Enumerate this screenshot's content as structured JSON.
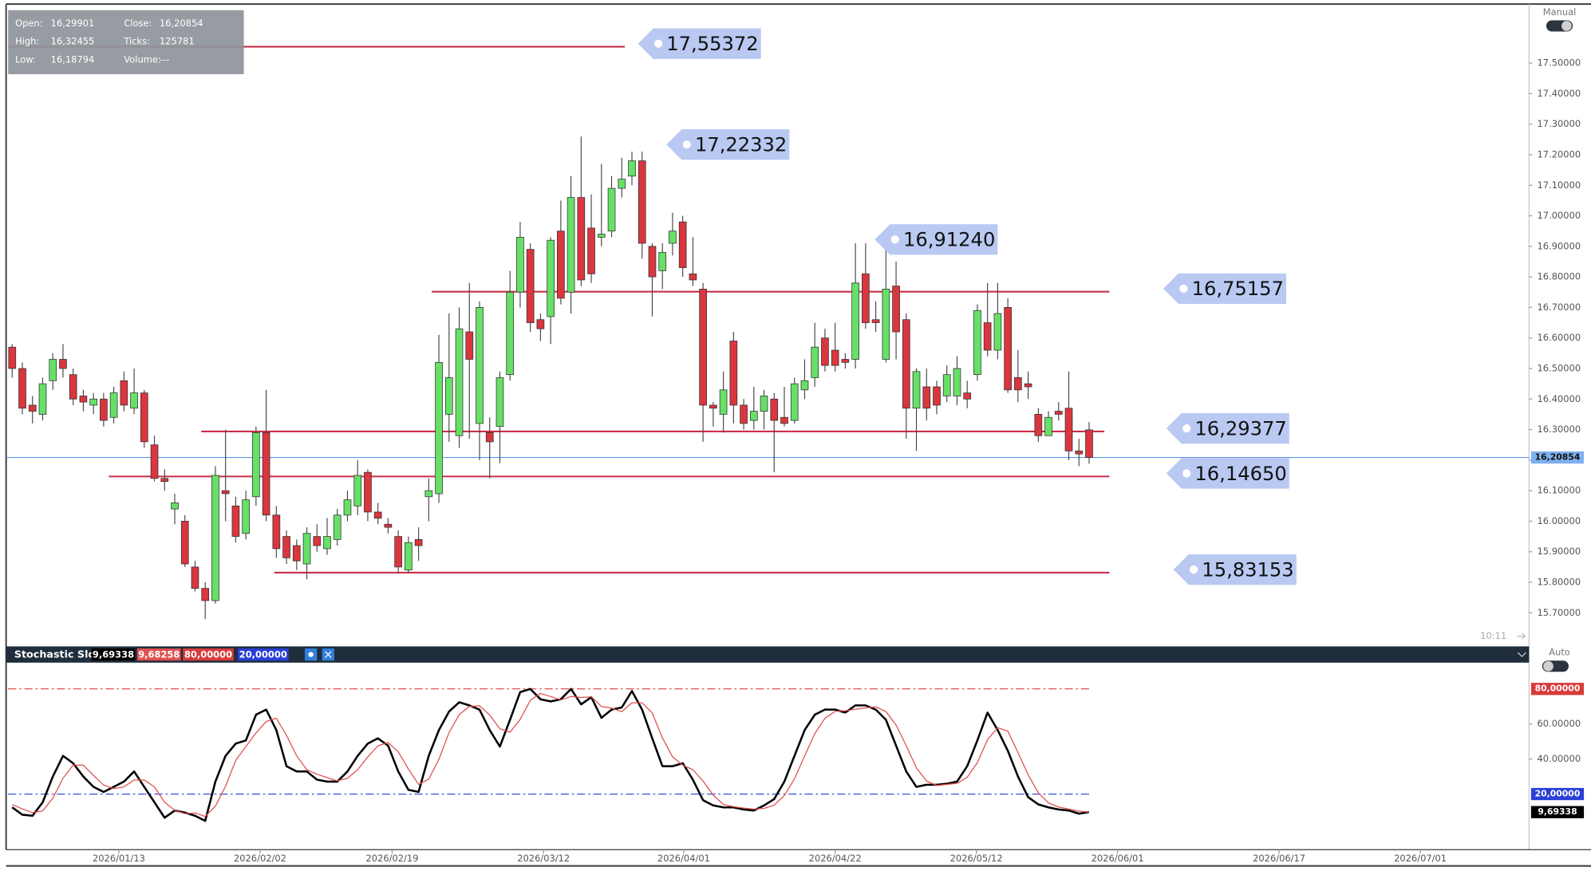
{
  "info": [
    {
      "label": "Open:",
      "value": "16,29901"
    },
    {
      "label": "High:",
      "value": "16,32455"
    },
    {
      "label": "Low:",
      "value": "16,18794"
    },
    {
      "label": "Close:",
      "value": "16,20854"
    },
    {
      "label": "Ticks:",
      "value": "125781"
    },
    {
      "label": "Volume:",
      "value": "---"
    }
  ],
  "controls": {
    "price_mode": "Manual",
    "indicator_mode": "Auto",
    "time": "10:11"
  },
  "chart_data": [
    {
      "type": "candlestick",
      "up_color": "#66e066",
      "down_color": "#d9363e",
      "level_color": "#c8304a",
      "last_price_color": "#4a86e8",
      "open": [
        16.57,
        16.5,
        16.38,
        16.35,
        16.46,
        16.53,
        16.48,
        16.41,
        16.38,
        16.4,
        16.34,
        16.46,
        16.37,
        16.42,
        16.25,
        16.14,
        16.04,
        16.0,
        15.85,
        15.78,
        15.74,
        16.1,
        16.05,
        15.96,
        16.08,
        16.29,
        16.02,
        15.95,
        15.92,
        15.86,
        15.95,
        15.91,
        15.94,
        16.02,
        16.05,
        16.16,
        16.03,
        15.99,
        15.95,
        15.84,
        15.94,
        16.08,
        16.09,
        16.35,
        16.28,
        16.62,
        16.32,
        16.29,
        16.31,
        16.48,
        16.75,
        16.89,
        16.66,
        16.67,
        16.95,
        16.75,
        17.06,
        16.96,
        16.93,
        16.95,
        17.09,
        17.13,
        17.18,
        16.9,
        16.82,
        16.91,
        16.98,
        16.81,
        16.76,
        16.38,
        16.35,
        16.59,
        16.38,
        16.33,
        16.36,
        16.4,
        16.34,
        16.33,
        16.43,
        16.47,
        16.6,
        16.56,
        16.53,
        16.53,
        16.81,
        16.66,
        16.53,
        16.77,
        16.66,
        16.37,
        16.44,
        16.44,
        16.41,
        16.41,
        16.42,
        16.48,
        16.65,
        16.56,
        16.7,
        16.47,
        16.45,
        16.35,
        16.28,
        16.36,
        16.37,
        16.23,
        16.29901
      ],
      "high": [
        16.58,
        16.52,
        16.41,
        16.47,
        16.55,
        16.58,
        16.5,
        16.43,
        16.42,
        16.42,
        16.44,
        16.49,
        16.5,
        16.43,
        16.28,
        16.17,
        16.09,
        16.02,
        15.87,
        15.8,
        16.18,
        16.3,
        16.08,
        16.1,
        16.31,
        16.43,
        16.05,
        15.97,
        15.94,
        15.98,
        15.99,
        16.01,
        16.04,
        16.1,
        16.2,
        16.17,
        16.06,
        16.01,
        15.97,
        15.95,
        15.98,
        16.14,
        16.61,
        16.68,
        16.7,
        16.78,
        16.72,
        16.34,
        16.49,
        16.82,
        16.98,
        16.91,
        16.68,
        16.93,
        17.05,
        17.13,
        17.26,
        17.07,
        17.17,
        17.13,
        17.19,
        17.21,
        17.21,
        16.91,
        16.91,
        17.01,
        17.0,
        16.93,
        16.78,
        16.39,
        16.49,
        16.62,
        16.4,
        16.44,
        16.43,
        16.42,
        16.44,
        16.47,
        16.53,
        16.65,
        16.63,
        16.65,
        16.55,
        16.91,
        16.91,
        16.72,
        16.89,
        16.85,
        16.68,
        16.5,
        16.5,
        16.46,
        16.51,
        16.54,
        16.46,
        16.71,
        16.78,
        16.78,
        16.73,
        16.56,
        16.49,
        16.37,
        16.36,
        16.39,
        16.49,
        16.27,
        16.32455
      ],
      "low": [
        16.47,
        16.35,
        16.32,
        16.33,
        16.43,
        16.47,
        16.38,
        16.36,
        16.35,
        16.31,
        16.32,
        16.36,
        16.35,
        16.24,
        16.13,
        16.1,
        15.99,
        15.85,
        15.77,
        15.68,
        15.73,
        16.0,
        15.93,
        15.94,
        16.05,
        16.0,
        15.88,
        15.86,
        15.84,
        15.81,
        15.9,
        15.89,
        15.92,
        16.0,
        16.02,
        16.0,
        15.99,
        15.96,
        15.83,
        15.83,
        15.87,
        16.0,
        16.06,
        16.26,
        16.24,
        16.27,
        16.2,
        16.14,
        16.19,
        16.46,
        16.7,
        16.62,
        16.59,
        16.58,
        16.71,
        16.68,
        16.77,
        16.78,
        16.9,
        16.93,
        17.06,
        17.1,
        16.86,
        16.67,
        16.76,
        16.87,
        16.8,
        16.77,
        16.26,
        16.31,
        16.29,
        16.32,
        16.3,
        16.3,
        16.3,
        16.16,
        16.31,
        16.32,
        16.4,
        16.44,
        16.49,
        16.49,
        16.5,
        16.5,
        16.63,
        16.62,
        16.52,
        16.53,
        16.27,
        16.23,
        16.33,
        16.35,
        16.39,
        16.38,
        16.37,
        16.46,
        16.54,
        16.53,
        16.42,
        16.39,
        16.4,
        16.26,
        16.28,
        16.33,
        16.2,
        16.18,
        16.18794
      ],
      "close": [
        16.5,
        16.37,
        16.36,
        16.45,
        16.53,
        16.5,
        16.4,
        16.39,
        16.4,
        16.33,
        16.42,
        16.38,
        16.42,
        16.26,
        16.14,
        16.13,
        16.06,
        15.86,
        15.78,
        15.74,
        16.15,
        16.09,
        15.95,
        16.07,
        16.29,
        16.02,
        15.91,
        15.88,
        15.87,
        15.96,
        15.92,
        15.95,
        16.02,
        16.07,
        16.15,
        16.03,
        16.01,
        15.98,
        15.85,
        15.93,
        15.92,
        16.1,
        16.52,
        16.47,
        16.63,
        16.53,
        16.7,
        16.26,
        16.47,
        16.75,
        16.93,
        16.65,
        16.63,
        16.92,
        16.73,
        17.06,
        16.79,
        16.81,
        16.94,
        17.09,
        17.12,
        17.18,
        16.91,
        16.8,
        16.88,
        16.95,
        16.83,
        16.79,
        16.38,
        16.37,
        16.43,
        16.38,
        16.32,
        16.36,
        16.41,
        16.33,
        16.32,
        16.45,
        16.46,
        16.57,
        16.51,
        16.51,
        16.52,
        16.78,
        16.65,
        16.65,
        16.76,
        16.62,
        16.37,
        16.49,
        16.37,
        16.38,
        16.48,
        16.5,
        16.4,
        16.69,
        16.56,
        16.68,
        16.43,
        16.43,
        16.44,
        16.28,
        16.34,
        16.35,
        16.23,
        16.22,
        16.20854
      ],
      "ylim": [
        15.6,
        17.69
      ],
      "yticks": [
        {
          "value": 17.5,
          "label": "17.50000"
        },
        {
          "value": 17.4,
          "label": "17.40000"
        },
        {
          "value": 17.3,
          "label": "17.30000"
        },
        {
          "value": 17.2,
          "label": "17.20000"
        },
        {
          "value": 17.1,
          "label": "17.10000"
        },
        {
          "value": 17,
          "label": "17.00000"
        },
        {
          "value": 16.9,
          "label": "16.90000"
        },
        {
          "value": 16.8,
          "label": "16.80000"
        },
        {
          "value": 16.7,
          "label": "16.70000"
        },
        {
          "value": 16.6,
          "label": "16.60000"
        },
        {
          "value": 16.5,
          "label": "16.50000"
        },
        {
          "value": 16.4,
          "label": "16.40000"
        },
        {
          "value": 16.3,
          "label": "16.30000"
        },
        {
          "value": 16.2,
          "label": "16.20000"
        },
        {
          "value": 16.1,
          "label": "16.10000"
        },
        {
          "value": 16,
          "label": "16.00000"
        },
        {
          "value": 15.9,
          "label": "15.90000"
        },
        {
          "value": 15.8,
          "label": "15.80000"
        },
        {
          "value": 15.7,
          "label": "15.70000"
        }
      ],
      "xticks": [
        "2026/01/13",
        "2026/02/02",
        "2026/02/19",
        "2026/03/12",
        "2026/04/01",
        "2026/04/22",
        "2026/05/12",
        "2026/06/01",
        "2026/06/17",
        "2026/07/01"
      ],
      "levels": [
        {
          "value": 17.55372,
          "label": "17,55372"
        },
        {
          "value": 17.22332,
          "label": "17,22332"
        },
        {
          "value": 16.9124,
          "label": "16,91240"
        },
        {
          "value": 16.75157,
          "label": "16,75157"
        },
        {
          "value": 16.29377,
          "label": "16,29377"
        },
        {
          "value": 16.1465,
          "label": "16,14650"
        },
        {
          "value": 15.83153,
          "label": "15,83153"
        }
      ],
      "last_price": {
        "value": 16.20854,
        "label": "16,20854"
      }
    },
    {
      "type": "line",
      "title": "Stochastic Slow",
      "ylim": [
        -10,
        95
      ],
      "yticks": [
        {
          "value": 60,
          "label": "60.00000"
        },
        {
          "value": 40,
          "label": "40.00000"
        }
      ],
      "levels": [
        {
          "value": 80,
          "label": "80,00000",
          "color": "#d93a3a"
        },
        {
          "value": 20,
          "label": "20,00000",
          "color": "#2a3fd6"
        }
      ],
      "series": [
        {
          "color": "#000000",
          "label": "9,69338",
          "values": [
            12.4,
            8.2,
            7.6,
            15.3,
            30.0,
            41.8,
            37.6,
            30.0,
            24.1,
            21.2,
            24.1,
            27.1,
            32.9,
            24.1,
            15.3,
            6.5,
            10.6,
            9.4,
            7.6,
            4.7,
            27.1,
            41.8,
            48.8,
            50.6,
            65.3,
            68.2,
            56.5,
            35.9,
            32.9,
            32.9,
            28.2,
            27.1,
            27.1,
            32.9,
            41.8,
            48.8,
            51.8,
            47.6,
            32.9,
            22.4,
            21.2,
            41.8,
            56.5,
            67.1,
            72.4,
            70.6,
            68.2,
            56.5,
            47.1,
            62.4,
            78.2,
            80.0,
            74.1,
            72.9,
            74.1,
            80.0,
            71.2,
            75.3,
            63.5,
            68.2,
            69.4,
            78.8,
            68.2,
            51.8,
            35.9,
            35.9,
            37.6,
            28.2,
            16.5,
            13.5,
            12.4,
            12.4,
            11.2,
            10.6,
            13.5,
            17.1,
            27.1,
            41.8,
            56.5,
            65.3,
            68.2,
            68.2,
            66.5,
            70.6,
            70.6,
            68.2,
            62.4,
            47.6,
            32.9,
            24.1,
            25.3,
            25.3,
            25.9,
            27.1,
            35.9,
            50.6,
            66.5,
            56.5,
            44.7,
            30.0,
            18.2,
            14.1,
            12.4,
            11.2,
            10.6,
            8.8,
            9.69338
          ]
        },
        {
          "color": "#e05050",
          "label": "9,68258",
          "values": [
            14.0,
            11.5,
            9.4,
            10.4,
            17.6,
            29.0,
            36.5,
            36.5,
            30.6,
            25.1,
            23.1,
            24.1,
            28.0,
            28.0,
            24.1,
            15.3,
            10.8,
            8.8,
            9.2,
            7.2,
            13.1,
            24.5,
            39.2,
            47.1,
            54.9,
            61.4,
            63.3,
            53.5,
            41.8,
            33.9,
            31.3,
            29.4,
            27.5,
            29.0,
            33.9,
            41.2,
            47.5,
            49.4,
            44.1,
            34.3,
            25.5,
            28.5,
            39.8,
            55.1,
            65.3,
            70.0,
            70.4,
            65.1,
            57.3,
            55.3,
            62.6,
            73.5,
            77.4,
            75.7,
            73.7,
            75.7,
            75.1,
            75.5,
            70.0,
            69.0,
            67.0,
            72.1,
            72.1,
            66.3,
            52.0,
            41.2,
            36.5,
            33.9,
            27.4,
            19.4,
            14.1,
            12.8,
            12.0,
            11.4,
            11.8,
            13.7,
            19.2,
            28.7,
            41.8,
            54.5,
            63.3,
            67.2,
            67.6,
            68.4,
            69.2,
            69.8,
            67.1,
            59.4,
            47.6,
            34.9,
            27.4,
            24.9,
            25.5,
            26.1,
            29.6,
            37.9,
            51.0,
            57.9,
            55.9,
            43.7,
            31.0,
            20.8,
            14.9,
            12.6,
            11.4,
            10.2,
            9.68258
          ]
        }
      ]
    }
  ]
}
